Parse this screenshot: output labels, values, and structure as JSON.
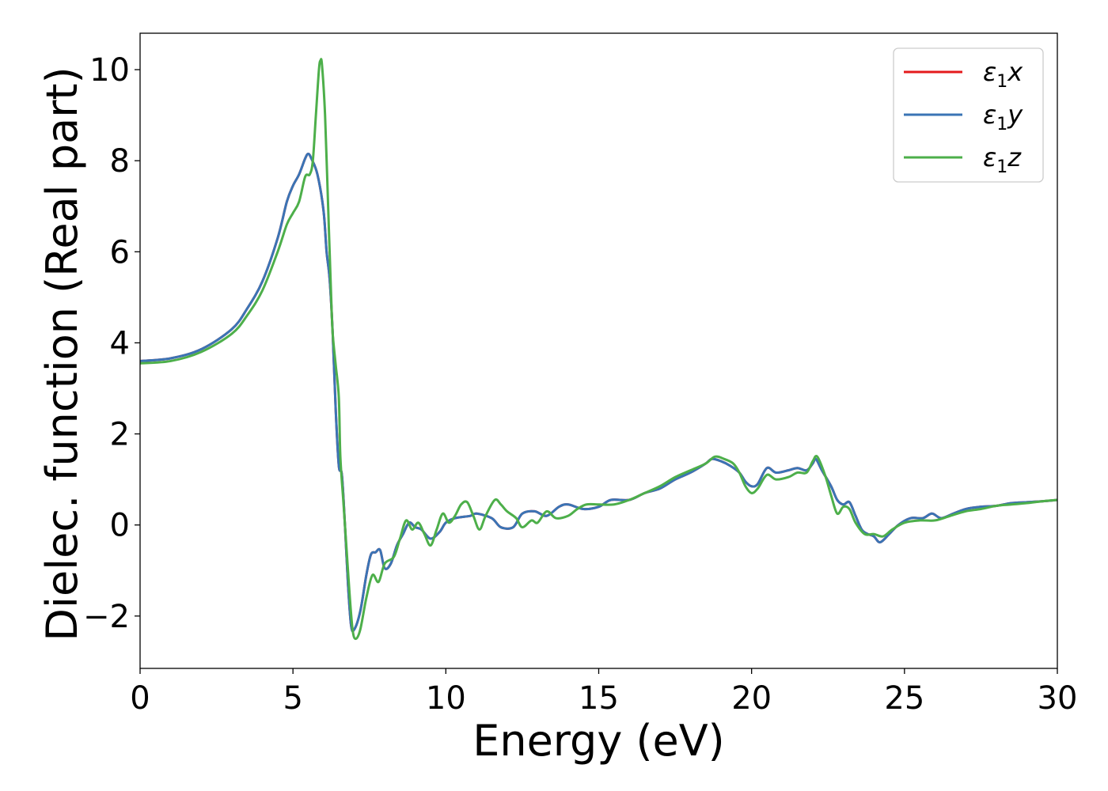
{
  "chart_data": {
    "type": "line",
    "xlabel": "Energy (eV)",
    "ylabel": "Dielec. function (Real part)",
    "xlim": [
      0,
      30
    ],
    "ylim": [
      -3.15,
      10.8
    ],
    "x_ticks": [
      0,
      5,
      10,
      15,
      20,
      25,
      30
    ],
    "x_tick_labels": [
      "0",
      "5",
      "10",
      "15",
      "20",
      "25",
      "30"
    ],
    "y_ticks": [
      -2,
      0,
      2,
      4,
      6,
      8,
      10
    ],
    "y_tick_labels": [
      "−2",
      "0",
      "2",
      "4",
      "6",
      "8",
      "10"
    ],
    "grid": false,
    "legend_position": "top-right",
    "series": [
      {
        "name": "ε1x",
        "name_base": "ε",
        "name_sub": "1",
        "name_suffix": "x",
        "color": "#e41a1c",
        "points": [
          [
            0,
            3.6
          ],
          [
            1,
            3.66
          ],
          [
            2,
            3.86
          ],
          [
            3,
            4.3
          ],
          [
            3.5,
            4.75
          ],
          [
            4,
            5.35
          ],
          [
            4.5,
            6.3
          ],
          [
            4.8,
            7.1
          ],
          [
            5,
            7.45
          ],
          [
            5.2,
            7.7
          ],
          [
            5.4,
            8.05
          ],
          [
            5.5,
            8.15
          ],
          [
            5.6,
            8.05
          ],
          [
            5.8,
            7.7
          ],
          [
            6,
            6.9
          ],
          [
            6.1,
            6.0
          ],
          [
            6.2,
            5.4
          ],
          [
            6.3,
            4.2
          ],
          [
            6.4,
            2.5
          ],
          [
            6.5,
            1.3
          ],
          [
            6.6,
            1.1
          ],
          [
            6.7,
            0.0
          ],
          [
            6.8,
            -1.3
          ],
          [
            6.9,
            -2.2
          ],
          [
            7.0,
            -2.3
          ],
          [
            7.2,
            -1.9
          ],
          [
            7.4,
            -1.1
          ],
          [
            7.55,
            -0.65
          ],
          [
            7.7,
            -0.6
          ],
          [
            7.85,
            -0.55
          ],
          [
            8.0,
            -0.95
          ],
          [
            8.2,
            -0.85
          ],
          [
            8.4,
            -0.45
          ],
          [
            8.6,
            -0.2
          ],
          [
            8.8,
            0.05
          ],
          [
            9.0,
            -0.05
          ],
          [
            9.2,
            -0.1
          ],
          [
            9.5,
            -0.3
          ],
          [
            9.8,
            -0.15
          ],
          [
            10.0,
            0.05
          ],
          [
            10.3,
            0.15
          ],
          [
            10.8,
            0.2
          ],
          [
            11.0,
            0.25
          ],
          [
            11.5,
            0.15
          ],
          [
            11.8,
            -0.05
          ],
          [
            12.2,
            -0.05
          ],
          [
            12.5,
            0.25
          ],
          [
            12.9,
            0.3
          ],
          [
            13.3,
            0.2
          ],
          [
            13.7,
            0.4
          ],
          [
            14.0,
            0.45
          ],
          [
            14.5,
            0.35
          ],
          [
            15.0,
            0.4
          ],
          [
            15.4,
            0.55
          ],
          [
            16.0,
            0.55
          ],
          [
            16.5,
            0.7
          ],
          [
            17.0,
            0.8
          ],
          [
            17.5,
            1.0
          ],
          [
            18.0,
            1.15
          ],
          [
            18.5,
            1.35
          ],
          [
            18.7,
            1.45
          ],
          [
            19.0,
            1.4
          ],
          [
            19.3,
            1.3
          ],
          [
            19.6,
            1.15
          ],
          [
            19.8,
            0.95
          ],
          [
            20.0,
            0.85
          ],
          [
            20.2,
            0.9
          ],
          [
            20.5,
            1.25
          ],
          [
            20.8,
            1.15
          ],
          [
            21.2,
            1.2
          ],
          [
            21.5,
            1.25
          ],
          [
            21.8,
            1.2
          ],
          [
            22.0,
            1.35
          ],
          [
            22.1,
            1.45
          ],
          [
            22.3,
            1.2
          ],
          [
            22.6,
            0.85
          ],
          [
            22.8,
            0.55
          ],
          [
            23.0,
            0.45
          ],
          [
            23.2,
            0.5
          ],
          [
            23.4,
            0.2
          ],
          [
            23.6,
            -0.1
          ],
          [
            23.8,
            -0.2
          ],
          [
            24.0,
            -0.25
          ],
          [
            24.2,
            -0.38
          ],
          [
            24.5,
            -0.2
          ],
          [
            24.8,
            0.0
          ],
          [
            25.2,
            0.15
          ],
          [
            25.6,
            0.15
          ],
          [
            25.9,
            0.25
          ],
          [
            26.2,
            0.15
          ],
          [
            26.6,
            0.25
          ],
          [
            27.0,
            0.35
          ],
          [
            27.5,
            0.4
          ],
          [
            28.0,
            0.42
          ],
          [
            28.5,
            0.48
          ],
          [
            29.0,
            0.5
          ],
          [
            29.5,
            0.52
          ],
          [
            30.0,
            0.55
          ]
        ]
      },
      {
        "name": "ε1y",
        "name_base": "ε",
        "name_sub": "1",
        "name_suffix": "y",
        "color": "#3a74b5",
        "points": [
          [
            0,
            3.6
          ],
          [
            1,
            3.66
          ],
          [
            2,
            3.86
          ],
          [
            3,
            4.3
          ],
          [
            3.5,
            4.75
          ],
          [
            4,
            5.35
          ],
          [
            4.5,
            6.3
          ],
          [
            4.8,
            7.1
          ],
          [
            5,
            7.45
          ],
          [
            5.2,
            7.7
          ],
          [
            5.4,
            8.05
          ],
          [
            5.5,
            8.15
          ],
          [
            5.6,
            8.05
          ],
          [
            5.8,
            7.7
          ],
          [
            6,
            6.9
          ],
          [
            6.1,
            6.0
          ],
          [
            6.2,
            5.4
          ],
          [
            6.3,
            4.2
          ],
          [
            6.4,
            2.5
          ],
          [
            6.5,
            1.3
          ],
          [
            6.6,
            1.1
          ],
          [
            6.7,
            0.0
          ],
          [
            6.8,
            -1.3
          ],
          [
            6.9,
            -2.2
          ],
          [
            7.0,
            -2.3
          ],
          [
            7.2,
            -1.9
          ],
          [
            7.4,
            -1.1
          ],
          [
            7.55,
            -0.65
          ],
          [
            7.7,
            -0.6
          ],
          [
            7.85,
            -0.55
          ],
          [
            8.0,
            -0.95
          ],
          [
            8.2,
            -0.85
          ],
          [
            8.4,
            -0.45
          ],
          [
            8.6,
            -0.2
          ],
          [
            8.8,
            0.05
          ],
          [
            9.0,
            -0.05
          ],
          [
            9.2,
            -0.1
          ],
          [
            9.5,
            -0.3
          ],
          [
            9.8,
            -0.15
          ],
          [
            10.0,
            0.05
          ],
          [
            10.3,
            0.15
          ],
          [
            10.8,
            0.2
          ],
          [
            11.0,
            0.25
          ],
          [
            11.5,
            0.15
          ],
          [
            11.8,
            -0.05
          ],
          [
            12.2,
            -0.05
          ],
          [
            12.5,
            0.25
          ],
          [
            12.9,
            0.3
          ],
          [
            13.3,
            0.2
          ],
          [
            13.7,
            0.4
          ],
          [
            14.0,
            0.45
          ],
          [
            14.5,
            0.35
          ],
          [
            15.0,
            0.4
          ],
          [
            15.4,
            0.55
          ],
          [
            16.0,
            0.55
          ],
          [
            16.5,
            0.7
          ],
          [
            17.0,
            0.8
          ],
          [
            17.5,
            1.0
          ],
          [
            18.0,
            1.15
          ],
          [
            18.5,
            1.35
          ],
          [
            18.7,
            1.45
          ],
          [
            19.0,
            1.4
          ],
          [
            19.3,
            1.3
          ],
          [
            19.6,
            1.15
          ],
          [
            19.8,
            0.95
          ],
          [
            20.0,
            0.85
          ],
          [
            20.2,
            0.9
          ],
          [
            20.5,
            1.25
          ],
          [
            20.8,
            1.15
          ],
          [
            21.2,
            1.2
          ],
          [
            21.5,
            1.25
          ],
          [
            21.8,
            1.2
          ],
          [
            22.0,
            1.35
          ],
          [
            22.1,
            1.45
          ],
          [
            22.3,
            1.2
          ],
          [
            22.6,
            0.85
          ],
          [
            22.8,
            0.55
          ],
          [
            23.0,
            0.45
          ],
          [
            23.2,
            0.5
          ],
          [
            23.4,
            0.2
          ],
          [
            23.6,
            -0.1
          ],
          [
            23.8,
            -0.2
          ],
          [
            24.0,
            -0.25
          ],
          [
            24.2,
            -0.38
          ],
          [
            24.5,
            -0.2
          ],
          [
            24.8,
            0.0
          ],
          [
            25.2,
            0.15
          ],
          [
            25.6,
            0.15
          ],
          [
            25.9,
            0.25
          ],
          [
            26.2,
            0.15
          ],
          [
            26.6,
            0.25
          ],
          [
            27.0,
            0.35
          ],
          [
            27.5,
            0.4
          ],
          [
            28.0,
            0.42
          ],
          [
            28.5,
            0.48
          ],
          [
            29.0,
            0.5
          ],
          [
            29.5,
            0.52
          ],
          [
            30.0,
            0.55
          ]
        ]
      },
      {
        "name": "ε1z",
        "name_base": "ε",
        "name_sub": "1",
        "name_suffix": "z",
        "color": "#4daf4a",
        "points": [
          [
            0,
            3.55
          ],
          [
            1,
            3.6
          ],
          [
            2,
            3.8
          ],
          [
            3,
            4.2
          ],
          [
            3.5,
            4.6
          ],
          [
            4,
            5.15
          ],
          [
            4.5,
            6.0
          ],
          [
            4.8,
            6.6
          ],
          [
            5,
            6.85
          ],
          [
            5.2,
            7.1
          ],
          [
            5.4,
            7.65
          ],
          [
            5.55,
            7.7
          ],
          [
            5.65,
            8.0
          ],
          [
            5.75,
            9.0
          ],
          [
            5.85,
            10.0
          ],
          [
            5.9,
            10.2
          ],
          [
            5.95,
            10.1
          ],
          [
            6.05,
            9.0
          ],
          [
            6.15,
            7.0
          ],
          [
            6.25,
            5.0
          ],
          [
            6.3,
            4.2
          ],
          [
            6.4,
            3.5
          ],
          [
            6.5,
            2.8
          ],
          [
            6.55,
            1.5
          ],
          [
            6.65,
            0.5
          ],
          [
            6.75,
            -0.5
          ],
          [
            6.85,
            -1.5
          ],
          [
            6.95,
            -2.3
          ],
          [
            7.05,
            -2.5
          ],
          [
            7.2,
            -2.3
          ],
          [
            7.4,
            -1.6
          ],
          [
            7.6,
            -1.1
          ],
          [
            7.8,
            -1.25
          ],
          [
            8.0,
            -0.85
          ],
          [
            8.3,
            -0.7
          ],
          [
            8.5,
            -0.3
          ],
          [
            8.7,
            0.1
          ],
          [
            8.9,
            -0.1
          ],
          [
            9.1,
            0.05
          ],
          [
            9.3,
            -0.2
          ],
          [
            9.5,
            -0.45
          ],
          [
            9.7,
            -0.1
          ],
          [
            9.9,
            0.25
          ],
          [
            10.1,
            0.05
          ],
          [
            10.3,
            0.2
          ],
          [
            10.5,
            0.45
          ],
          [
            10.7,
            0.5
          ],
          [
            10.9,
            0.2
          ],
          [
            11.1,
            -0.1
          ],
          [
            11.3,
            0.2
          ],
          [
            11.6,
            0.55
          ],
          [
            11.8,
            0.45
          ],
          [
            12.0,
            0.3
          ],
          [
            12.3,
            0.15
          ],
          [
            12.5,
            -0.05
          ],
          [
            12.8,
            0.1
          ],
          [
            13.0,
            0.05
          ],
          [
            13.3,
            0.3
          ],
          [
            13.6,
            0.15
          ],
          [
            14.0,
            0.2
          ],
          [
            14.3,
            0.35
          ],
          [
            14.6,
            0.45
          ],
          [
            15.0,
            0.45
          ],
          [
            15.5,
            0.45
          ],
          [
            16.0,
            0.55
          ],
          [
            16.5,
            0.7
          ],
          [
            17.0,
            0.85
          ],
          [
            17.5,
            1.05
          ],
          [
            18.0,
            1.2
          ],
          [
            18.5,
            1.35
          ],
          [
            18.8,
            1.5
          ],
          [
            19.1,
            1.45
          ],
          [
            19.4,
            1.35
          ],
          [
            19.6,
            1.15
          ],
          [
            19.8,
            0.85
          ],
          [
            20.0,
            0.7
          ],
          [
            20.2,
            0.8
          ],
          [
            20.5,
            1.1
          ],
          [
            20.8,
            1.0
          ],
          [
            21.2,
            1.05
          ],
          [
            21.5,
            1.15
          ],
          [
            21.8,
            1.15
          ],
          [
            22.0,
            1.4
          ],
          [
            22.15,
            1.5
          ],
          [
            22.4,
            1.1
          ],
          [
            22.6,
            0.65
          ],
          [
            22.8,
            0.25
          ],
          [
            23.0,
            0.4
          ],
          [
            23.2,
            0.35
          ],
          [
            23.4,
            0.05
          ],
          [
            23.7,
            -0.2
          ],
          [
            24.0,
            -0.2
          ],
          [
            24.3,
            -0.25
          ],
          [
            24.6,
            -0.1
          ],
          [
            25.0,
            0.05
          ],
          [
            25.5,
            0.1
          ],
          [
            26.0,
            0.1
          ],
          [
            26.5,
            0.2
          ],
          [
            27.0,
            0.3
          ],
          [
            27.5,
            0.35
          ],
          [
            28.0,
            0.42
          ],
          [
            28.5,
            0.45
          ],
          [
            29.0,
            0.48
          ],
          [
            29.5,
            0.52
          ],
          [
            30.0,
            0.55
          ]
        ]
      }
    ]
  }
}
